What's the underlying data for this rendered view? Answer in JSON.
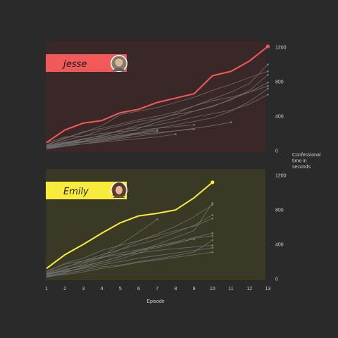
{
  "colors": {
    "background": "#2a2a2a",
    "gray_lines": "#7a7a7a",
    "jesse_accent": "#f25a5a",
    "jesse_panel": "#3a2828",
    "emily_accent": "#f7ec3c",
    "emily_panel": "#3a3926"
  },
  "x_axis": {
    "label": "Episode",
    "ticks": [
      "1",
      "2",
      "3",
      "4",
      "5",
      "6",
      "7",
      "8",
      "9",
      "10",
      "11",
      "12",
      "13"
    ]
  },
  "y_axis": {
    "label": "Confessional time in seconds"
  },
  "chart_data": [
    {
      "type": "line",
      "highlight_name": "Jesse",
      "avatar": "person-photo",
      "x": [
        1,
        2,
        3,
        4,
        5,
        6,
        7,
        8,
        9,
        10,
        11,
        12,
        13
      ],
      "ylim": [
        0,
        1250
      ],
      "yticks": [
        0,
        400,
        800,
        1200
      ],
      "grid": false,
      "highlight": [
        95,
        240,
        320,
        350,
        440,
        480,
        560,
        610,
        660,
        870,
        920,
        1040,
        1210
      ],
      "others": [
        [
          40,
          80,
          130,
          180,
          230,
          300,
          360,
          430,
          520,
          600,
          680,
          780,
          1000
        ],
        [
          60,
          150,
          210,
          290,
          420,
          460,
          500,
          560,
          620,
          700,
          770,
          850,
          920
        ],
        [
          30,
          70,
          110,
          160,
          200,
          260,
          330,
          380,
          460,
          520,
          590,
          700,
          880
        ],
        [
          50,
          120,
          170,
          240,
          290,
          340,
          370,
          420,
          460,
          510,
          600,
          680,
          750
        ],
        [
          20,
          60,
          100,
          130,
          160,
          210,
          260,
          300,
          340,
          380,
          460,
          570,
          720
        ],
        [
          70,
          140,
          220,
          260,
          310,
          360,
          400,
          450,
          520,
          580,
          620,
          680,
          790
        ],
        [
          40,
          90,
          140,
          170,
          240,
          270,
          300,
          340,
          390,
          430,
          470,
          540,
          650
        ],
        [
          90,
          160,
          170,
          200,
          220,
          240,
          260,
          280,
          300
        ],
        [
          50,
          90,
          110,
          140,
          170,
          190,
          210,
          230,
          250
        ],
        [
          30,
          60,
          80,
          100,
          120,
          140,
          160,
          190
        ],
        [
          60,
          100,
          130,
          150,
          180,
          210,
          240
        ],
        [
          20,
          50,
          80,
          110,
          140,
          170,
          200,
          230,
          260,
          290,
          330
        ],
        [
          40,
          80,
          100,
          120,
          150,
          200,
          230
        ]
      ]
    },
    {
      "type": "line",
      "highlight_name": "Emily",
      "avatar": "person-photo",
      "x": [
        1,
        2,
        3,
        4,
        5,
        6,
        7,
        8,
        9,
        10
      ],
      "ylim": [
        0,
        1250
      ],
      "yticks": [
        0,
        400,
        800,
        1200
      ],
      "grid": false,
      "highlight": [
        120,
        280,
        400,
        530,
        650,
        730,
        760,
        800,
        940,
        1120
      ],
      "others": [
        [
          40,
          100,
          160,
          240,
          340,
          440,
          520,
          610,
          720,
          860
        ],
        [
          60,
          130,
          210,
          280,
          340,
          400,
          460,
          540,
          620,
          740
        ],
        [
          20,
          70,
          140,
          200,
          260,
          320,
          400,
          480,
          560,
          880
        ],
        [
          80,
          180,
          240,
          330,
          390,
          440,
          500,
          560,
          610,
          700
        ],
        [
          30,
          80,
          130,
          180,
          230,
          300,
          380,
          430,
          480,
          530
        ],
        [
          50,
          110,
          150,
          200,
          260,
          330,
          360,
          410,
          470,
          500
        ],
        [
          40,
          100,
          180,
          260,
          400,
          540,
          690
        ],
        [
          70,
          140,
          190,
          250,
          300,
          340,
          380,
          420,
          460
        ],
        [
          20,
          60,
          100,
          140,
          160,
          200,
          230,
          270,
          310,
          450
        ],
        [
          90,
          170,
          210,
          250,
          280,
          300,
          330,
          350,
          370,
          390
        ],
        [
          30,
          50,
          80,
          120,
          150,
          190,
          220,
          250,
          280,
          310
        ],
        [
          60,
          90,
          120,
          160,
          200,
          240,
          270,
          300,
          330,
          360
        ]
      ]
    }
  ]
}
